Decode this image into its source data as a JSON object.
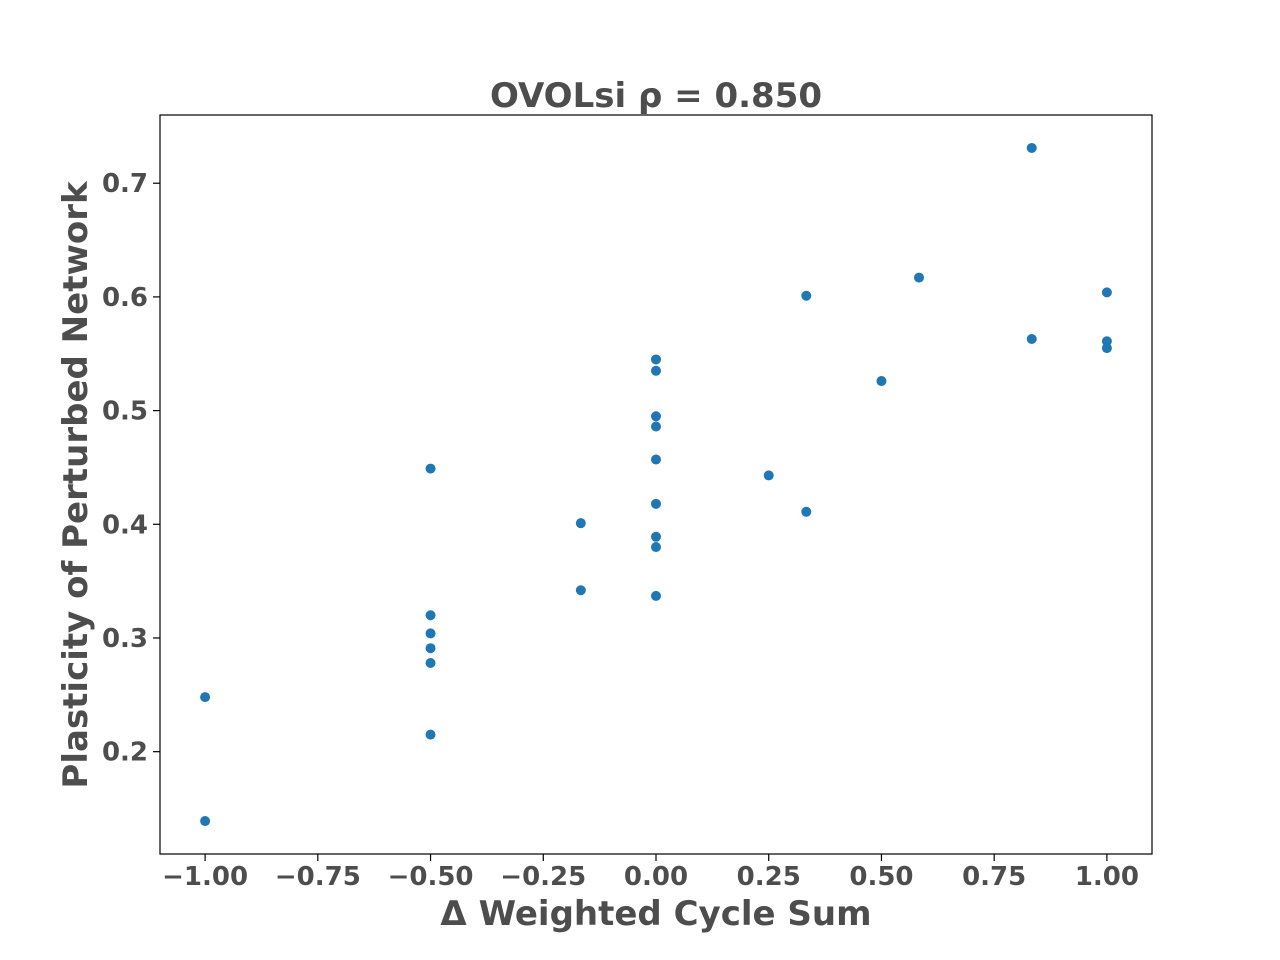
{
  "chart_data": {
    "type": "scatter",
    "title": "OVOLsi  ρ = 0.850",
    "xlabel": "Δ Weighted Cycle Sum",
    "ylabel": "Plasticity of Perturbed Network",
    "xlim": [
      -1.1,
      1.1
    ],
    "ylim": [
      0.11,
      0.76
    ],
    "xticks": [
      -1.0,
      -0.75,
      -0.5,
      -0.25,
      0.0,
      0.25,
      0.5,
      0.75,
      1.0
    ],
    "xtick_labels": [
      "−1.00",
      "−0.75",
      "−0.50",
      "−0.25",
      "0.00",
      "0.25",
      "0.50",
      "0.75",
      "1.00"
    ],
    "yticks": [
      0.2,
      0.3,
      0.4,
      0.5,
      0.6,
      0.7
    ],
    "ytick_labels": [
      "0.2",
      "0.3",
      "0.4",
      "0.5",
      "0.6",
      "0.7"
    ],
    "grid": false,
    "marker_color": "#1f77b4",
    "text_color": "#4d4d4d",
    "points": [
      {
        "x": -1.0,
        "y": 0.248
      },
      {
        "x": -1.0,
        "y": 0.139
      },
      {
        "x": -0.5,
        "y": 0.449
      },
      {
        "x": -0.5,
        "y": 0.32
      },
      {
        "x": -0.5,
        "y": 0.304
      },
      {
        "x": -0.5,
        "y": 0.291
      },
      {
        "x": -0.5,
        "y": 0.278
      },
      {
        "x": -0.5,
        "y": 0.215
      },
      {
        "x": -0.1667,
        "y": 0.401
      },
      {
        "x": -0.1667,
        "y": 0.342
      },
      {
        "x": 0.0,
        "y": 0.545
      },
      {
        "x": 0.0,
        "y": 0.535
      },
      {
        "x": 0.0,
        "y": 0.495
      },
      {
        "x": 0.0,
        "y": 0.486
      },
      {
        "x": 0.0,
        "y": 0.457
      },
      {
        "x": 0.0,
        "y": 0.418
      },
      {
        "x": 0.0,
        "y": 0.389
      },
      {
        "x": 0.0,
        "y": 0.38
      },
      {
        "x": 0.0,
        "y": 0.337
      },
      {
        "x": 0.25,
        "y": 0.443
      },
      {
        "x": 0.3333,
        "y": 0.601
      },
      {
        "x": 0.3333,
        "y": 0.411
      },
      {
        "x": 0.5,
        "y": 0.526
      },
      {
        "x": 0.5833,
        "y": 0.617
      },
      {
        "x": 0.8333,
        "y": 0.731
      },
      {
        "x": 0.8333,
        "y": 0.563
      },
      {
        "x": 1.0,
        "y": 0.604
      },
      {
        "x": 1.0,
        "y": 0.561
      },
      {
        "x": 1.0,
        "y": 0.555
      }
    ]
  }
}
